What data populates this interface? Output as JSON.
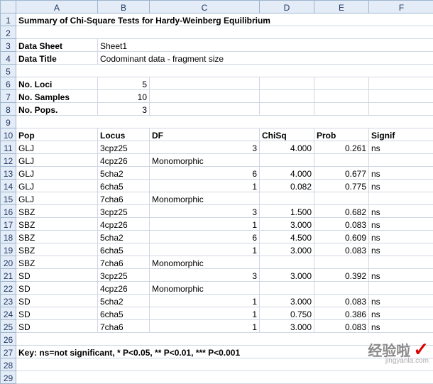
{
  "columns": [
    "A",
    "B",
    "C",
    "D",
    "E",
    "F"
  ],
  "rowCount": 29,
  "title": "Summary of Chi-Square Tests for Hardy-Weinberg Equilibrium",
  "labels": {
    "dataSheet": "Data Sheet",
    "dataSheetVal": "Sheet1",
    "dataTitle": "Data Title",
    "dataTitleVal": "Codominant data - fragment size",
    "noLoci": "No. Loci",
    "noLociVal": "5",
    "noSamples": "No. Samples",
    "noSamplesVal": "10",
    "noPops": "No. Pops.",
    "noPopsVal": "3"
  },
  "headers": {
    "pop": "Pop",
    "locus": "Locus",
    "df": "DF",
    "chisq": "ChiSq",
    "prob": "Prob",
    "signif": "Signif"
  },
  "rows": [
    {
      "pop": "GLJ",
      "locus": "3cpz25",
      "df": "3",
      "chisq": "4.000",
      "prob": "0.261",
      "signif": "ns"
    },
    {
      "pop": "GLJ",
      "locus": "4cpz26",
      "df": "Monomorphic",
      "chisq": "",
      "prob": "",
      "signif": ""
    },
    {
      "pop": "GLJ",
      "locus": "5cha2",
      "df": "6",
      "chisq": "4.000",
      "prob": "0.677",
      "signif": "ns"
    },
    {
      "pop": "GLJ",
      "locus": "6cha5",
      "df": "1",
      "chisq": "0.082",
      "prob": "0.775",
      "signif": "ns"
    },
    {
      "pop": "GLJ",
      "locus": "7cha6",
      "df": "Monomorphic",
      "chisq": "",
      "prob": "",
      "signif": ""
    },
    {
      "pop": "SBZ",
      "locus": "3cpz25",
      "df": "3",
      "chisq": "1.500",
      "prob": "0.682",
      "signif": "ns"
    },
    {
      "pop": "SBZ",
      "locus": "4cpz26",
      "df": "1",
      "chisq": "3.000",
      "prob": "0.083",
      "signif": "ns"
    },
    {
      "pop": "SBZ",
      "locus": "5cha2",
      "df": "6",
      "chisq": "4.500",
      "prob": "0.609",
      "signif": "ns"
    },
    {
      "pop": "SBZ",
      "locus": "6cha5",
      "df": "1",
      "chisq": "3.000",
      "prob": "0.083",
      "signif": "ns"
    },
    {
      "pop": "SBZ",
      "locus": "7cha6",
      "df": "Monomorphic",
      "chisq": "",
      "prob": "",
      "signif": ""
    },
    {
      "pop": "SD",
      "locus": "3cpz25",
      "df": "3",
      "chisq": "3.000",
      "prob": "0.392",
      "signif": "ns"
    },
    {
      "pop": "SD",
      "locus": "4cpz26",
      "df": "Monomorphic",
      "chisq": "",
      "prob": "",
      "signif": ""
    },
    {
      "pop": "SD",
      "locus": "5cha2",
      "df": "1",
      "chisq": "3.000",
      "prob": "0.083",
      "signif": "ns"
    },
    {
      "pop": "SD",
      "locus": "6cha5",
      "df": "1",
      "chisq": "0.750",
      "prob": "0.386",
      "signif": "ns"
    },
    {
      "pop": "SD",
      "locus": "7cha6",
      "df": "1",
      "chisq": "3.000",
      "prob": "0.083",
      "signif": "ns"
    }
  ],
  "key": "Key: ns=not significant, * P<0.05, ** P<0.01, *** P<0.001",
  "watermark": {
    "text": "经验啦",
    "sub": "jingyanla.com"
  }
}
